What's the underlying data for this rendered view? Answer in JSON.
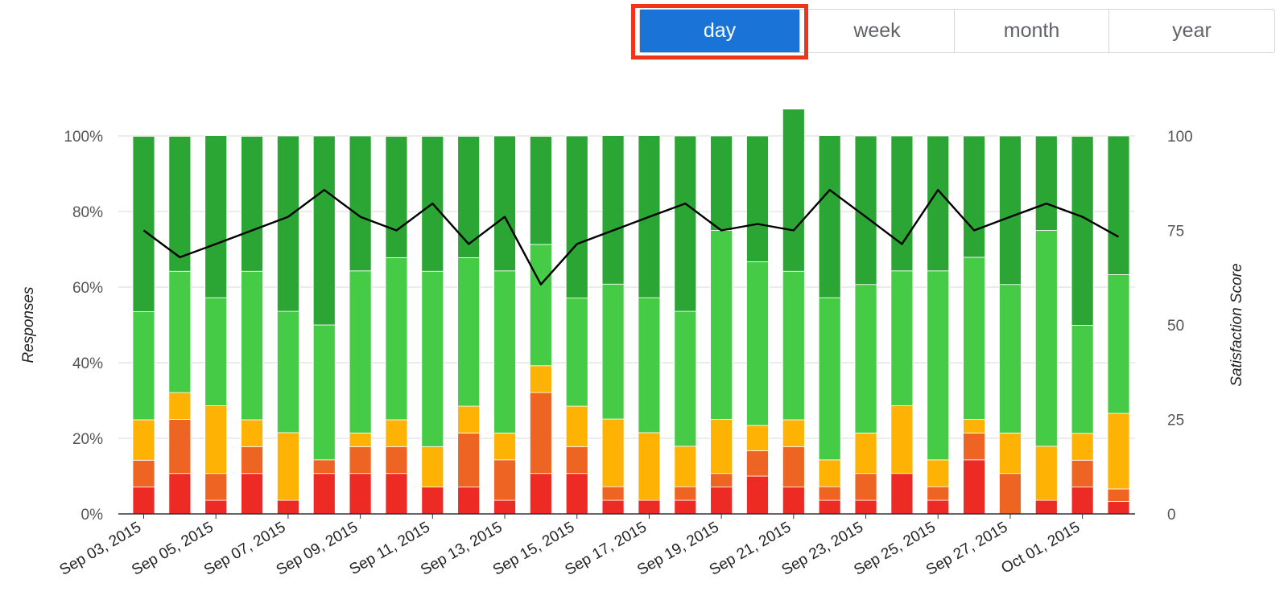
{
  "period_toggle": {
    "options": [
      "day",
      "week",
      "month",
      "year"
    ],
    "selected": "day",
    "active_color": "#1a73d6",
    "outline_color": "#f0341c"
  },
  "chart_data": {
    "type": "bar",
    "stacked": true,
    "dates": [
      "2015-09-03",
      "2015-09-04",
      "2015-09-05",
      "2015-09-06",
      "2015-09-07",
      "2015-09-08",
      "2015-09-09",
      "2015-09-10",
      "2015-09-11",
      "2015-09-12",
      "2015-09-13",
      "2015-09-14",
      "2015-09-15",
      "2015-09-16",
      "2015-09-17",
      "2015-09-18",
      "2015-09-19",
      "2015-09-20",
      "2015-09-21",
      "2015-09-22",
      "2015-09-23",
      "2015-09-24",
      "2015-09-25",
      "2015-09-26",
      "2015-09-27",
      "2015-09-28",
      "2015-10-01",
      "2015-10-02"
    ],
    "x_tick_labels": [
      "Sep 03, 2015",
      "Sep 05, 2015",
      "Sep 07, 2015",
      "Sep 09, 2015",
      "Sep 11, 2015",
      "Sep 13, 2015",
      "Sep 15, 2015",
      "Sep 17, 2015",
      "Sep 19, 2015",
      "Sep 21, 2015",
      "Sep 23, 2015",
      "Sep 25, 2015",
      "Sep 27, 2015",
      "Oct 01, 2015"
    ],
    "series": [
      {
        "color": "#ee2a24",
        "values": [
          7.1,
          10.7,
          3.6,
          10.7,
          3.6,
          10.7,
          10.7,
          10.7,
          7.1,
          7.1,
          3.6,
          10.7,
          10.7,
          3.6,
          3.6,
          3.6,
          7.1,
          10.0,
          7.1,
          3.6,
          3.6,
          10.7,
          3.6,
          14.3,
          0,
          3.6,
          7.1,
          3.3
        ]
      },
      {
        "color": "#ee6423",
        "values": [
          7.1,
          14.3,
          7.1,
          7.1,
          0,
          3.6,
          7.1,
          7.1,
          0,
          14.3,
          10.7,
          21.4,
          7.1,
          3.6,
          0,
          3.6,
          3.6,
          6.7,
          10.7,
          3.6,
          7.1,
          0,
          3.6,
          7.1,
          10.7,
          0,
          7.1,
          3.3
        ]
      },
      {
        "color": "#feb204",
        "values": [
          10.7,
          7.1,
          17.9,
          7.1,
          17.9,
          0,
          3.6,
          7.1,
          10.7,
          7.1,
          7.1,
          7.1,
          10.7,
          17.9,
          17.9,
          10.7,
          14.3,
          6.7,
          7.1,
          7.1,
          10.7,
          17.9,
          7.1,
          3.6,
          10.7,
          14.3,
          7.1,
          20.0
        ]
      },
      {
        "color": "#45cb45",
        "values": [
          28.6,
          32.1,
          28.6,
          39.3,
          32.1,
          35.7,
          42.9,
          42.9,
          46.4,
          39.3,
          42.9,
          32.1,
          28.6,
          35.7,
          35.7,
          35.7,
          50.0,
          43.3,
          39.3,
          42.9,
          39.3,
          35.7,
          50.0,
          42.9,
          39.3,
          57.1,
          28.6,
          36.7
        ]
      },
      {
        "color": "#2ba534",
        "values": [
          46.4,
          35.7,
          42.9,
          35.7,
          46.4,
          50.0,
          35.7,
          32.1,
          35.7,
          32.1,
          35.7,
          28.6,
          42.9,
          39.3,
          42.9,
          46.4,
          25.0,
          33.3,
          42.9,
          42.9,
          39.3,
          35.7,
          35.7,
          32.1,
          39.3,
          25.0,
          50.0,
          36.7
        ]
      }
    ],
    "satisfaction_score": [
      75.0,
      67.9,
      71.4,
      75.0,
      78.6,
      85.7,
      78.6,
      75.0,
      82.1,
      71.4,
      78.6,
      60.7,
      71.4,
      75.0,
      78.6,
      82.1,
      75.0,
      76.7,
      75.0,
      85.7,
      78.6,
      71.4,
      85.7,
      75.0,
      78.6,
      82.1,
      78.6,
      73.3
    ],
    "line_color": "#000000",
    "ylabel": "Responses",
    "y2label": "Satisfaction Score",
    "y_ticks": [
      "0%",
      "20%",
      "40%",
      "60%",
      "80%",
      "100%"
    ],
    "y2_ticks": [
      "0",
      "25",
      "50",
      "75",
      "100"
    ],
    "ylim": [
      0,
      100
    ],
    "y2lim": [
      0,
      100
    ],
    "grid": true
  }
}
